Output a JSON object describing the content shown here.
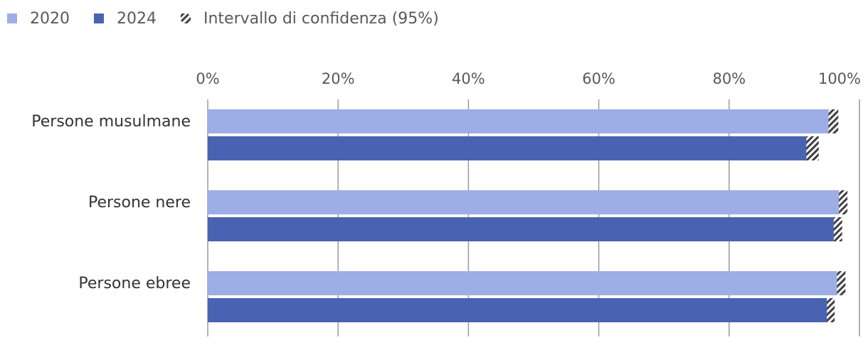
{
  "chart_data": {
    "type": "bar",
    "orientation": "horizontal",
    "categories": [
      "Persone musulmane",
      "Persone nere",
      "Persone ebree"
    ],
    "series": [
      {
        "name": "2020",
        "color": "#9DAEE6",
        "values": [
          96,
          97.5,
          97.2
        ],
        "ci": [
          1.5,
          1.3,
          1.3
        ]
      },
      {
        "name": "2024",
        "color": "#4A62B2",
        "values": [
          92.8,
          96.7,
          95.6
        ],
        "ci": [
          1.9,
          1.3,
          1.2
        ]
      }
    ],
    "ci_legend_label": "Intervallo di confidenza (95%)",
    "x_ticks": [
      "0%",
      "20%",
      "40%",
      "60%",
      "80%",
      "100%"
    ],
    "xlim": [
      0,
      100
    ],
    "grid": true,
    "legend_position": "top-left",
    "title": "",
    "xlabel": "",
    "ylabel": ""
  }
}
